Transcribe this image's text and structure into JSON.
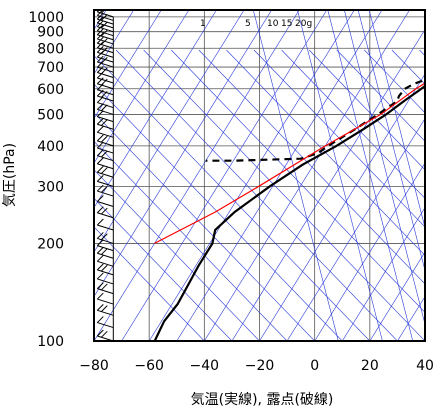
{
  "chart_data": {
    "type": "line",
    "title": "",
    "xlabel": "気温(実線), 露点(破線)",
    "ylabel": "気圧(hPa)",
    "xlim": [
      -80,
      40
    ],
    "ylim": [
      1050,
      100
    ],
    "y_scale": "log",
    "grid": true,
    "x_ticks": [
      -80,
      -60,
      -40,
      -20,
      0,
      20,
      40
    ],
    "y_ticks": [
      100,
      200,
      300,
      400,
      500,
      600,
      700,
      800,
      900,
      1000
    ],
    "mixing_ratio_labels": [
      "1",
      "5",
      "10",
      "15",
      "20g"
    ],
    "series": [
      {
        "name": "気温",
        "style": "solid",
        "color": "#000000",
        "points": [
          [
            1000,
            12.5
          ],
          [
            990,
            12
          ],
          [
            950,
            8
          ],
          [
            925,
            6
          ],
          [
            900,
            3.5
          ],
          [
            850,
            0
          ],
          [
            800,
            -4
          ],
          [
            750,
            -7.5
          ],
          [
            700,
            -11
          ],
          [
            650,
            -15
          ],
          [
            600,
            -18
          ],
          [
            550,
            -21.5
          ],
          [
            500,
            -25
          ],
          [
            450,
            -30
          ],
          [
            400,
            -36
          ],
          [
            350,
            -44
          ],
          [
            300,
            -51
          ],
          [
            250,
            -58
          ],
          [
            220,
            -61
          ],
          [
            200,
            -59
          ],
          [
            170,
            -59
          ],
          [
            150,
            -58.5
          ],
          [
            130,
            -58
          ],
          [
            115,
            -59
          ],
          [
            100,
            -58
          ]
        ]
      },
      {
        "name": "露点",
        "style": "dashed",
        "color": "#000000",
        "points": [
          [
            1000,
            9
          ],
          [
            990,
            11
          ],
          [
            950,
            6
          ],
          [
            900,
            0
          ],
          [
            850,
            -5
          ],
          [
            800,
            -8
          ],
          [
            750,
            -12
          ],
          [
            700,
            -14
          ],
          [
            650,
            -17
          ],
          [
            620,
            -22
          ],
          [
            600,
            -24
          ],
          [
            570,
            -24.5
          ],
          [
            550,
            -24
          ],
          [
            500,
            -28
          ],
          [
            450,
            -33
          ],
          [
            400,
            -39
          ],
          [
            380,
            -41
          ],
          [
            365,
            -46
          ],
          [
            360,
            -70
          ],
          [
            360,
            -80
          ]
        ]
      },
      {
        "name": "",
        "style": "solid",
        "color": "#ff0000",
        "points": [
          [
            1000,
            12.5
          ],
          [
            900,
            4
          ],
          [
            800,
            -4.5
          ],
          [
            700,
            -12
          ],
          [
            600,
            -20
          ],
          [
            500,
            -27
          ],
          [
            400,
            -40
          ],
          [
            300,
            -55
          ],
          [
            250,
            -65
          ],
          [
            200,
            -80
          ]
        ]
      }
    ],
    "wind_barbs": {
      "color": "#000000",
      "pressures": [
        1000,
        975,
        950,
        925,
        900,
        875,
        850,
        825,
        800,
        775,
        750,
        725,
        700,
        675,
        650,
        625,
        600,
        575,
        550,
        525,
        500,
        475,
        450,
        425,
        400,
        380,
        360,
        340,
        320,
        300,
        280,
        260,
        240,
        220,
        200,
        190,
        180,
        170,
        160,
        150,
        140,
        130,
        120,
        110,
        100
      ]
    }
  }
}
